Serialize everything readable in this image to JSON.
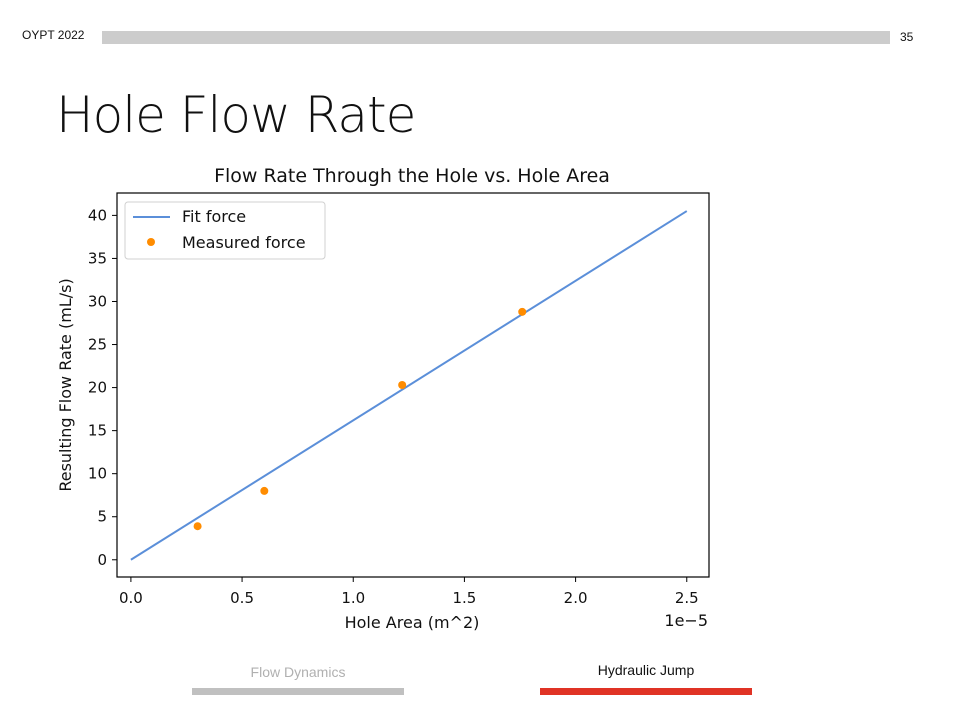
{
  "header": {
    "event": "OYPT 2022",
    "slide_number": "35"
  },
  "slide_title": "Hole Flow Rate",
  "nav": {
    "prev_label": "Flow Dynamics",
    "next_label": "Hydraulic Jump",
    "prev_color": "#c0c0c0",
    "active_color": "#e03325"
  },
  "chart_data": {
    "type": "scatter",
    "title": "Flow Rate Through the Hole vs. Hole Area",
    "xlabel": "Hole Area (m^2)",
    "ylabel": "Resulting Flow Rate (mL/s)",
    "x_offset_text": "1e−5",
    "xlim": [
      -6.25e-07,
      2.6e-05
    ],
    "ylim": [
      -2.0,
      42.6
    ],
    "x_ticks": [
      0,
      5e-06,
      1e-05,
      1.5e-05,
      2e-05,
      2.5e-05
    ],
    "x_tick_labels": [
      "0.0",
      "0.5",
      "1.0",
      "1.5",
      "2.0",
      "2.5"
    ],
    "y_ticks": [
      0,
      5,
      10,
      15,
      20,
      25,
      30,
      35,
      40
    ],
    "y_tick_labels": [
      "0",
      "5",
      "10",
      "15",
      "20",
      "25",
      "30",
      "35",
      "40"
    ],
    "grid": false,
    "legend_position": "top-left",
    "series": [
      {
        "name": "Fit force",
        "kind": "line",
        "color": "#5b8fd9",
        "x": [
          0,
          2.5e-05
        ],
        "y": [
          0,
          40.5
        ]
      },
      {
        "name": "Measured force",
        "kind": "scatter",
        "color": "#ff8c00",
        "x": [
          3e-06,
          6e-06,
          1.22e-05,
          1.76e-05
        ],
        "y": [
          3.9,
          8.0,
          20.3,
          28.8
        ]
      }
    ]
  }
}
